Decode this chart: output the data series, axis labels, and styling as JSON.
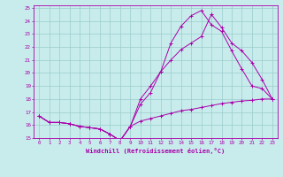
{
  "xlabel": "Windchill (Refroidissement éolien,°C)",
  "bg_color": "#c8ecec",
  "line_color": "#aa00aa",
  "grid_color": "#99cccc",
  "xlim": [
    -0.5,
    23.5
  ],
  "ylim": [
    15,
    25.2
  ],
  "xticks": [
    0,
    1,
    2,
    3,
    4,
    5,
    6,
    7,
    8,
    9,
    10,
    11,
    12,
    13,
    14,
    15,
    16,
    17,
    18,
    19,
    20,
    21,
    22,
    23
  ],
  "yticks": [
    15,
    16,
    17,
    18,
    19,
    20,
    21,
    22,
    23,
    24,
    25
  ],
  "series": [
    [
      16.7,
      16.2,
      16.2,
      16.1,
      15.9,
      15.8,
      15.7,
      15.3,
      14.8,
      15.9,
      17.6,
      18.5,
      20.1,
      22.3,
      23.6,
      24.4,
      24.8,
      23.7,
      23.2,
      21.7,
      20.3,
      19.0,
      18.8,
      18.0
    ],
    [
      16.7,
      16.2,
      16.2,
      16.1,
      15.9,
      15.8,
      15.7,
      15.3,
      14.8,
      15.9,
      18.0,
      19.0,
      20.1,
      21.0,
      21.8,
      22.3,
      22.8,
      24.5,
      23.5,
      22.3,
      21.7,
      20.8,
      19.5,
      18.0
    ],
    [
      16.7,
      16.2,
      16.2,
      16.1,
      15.9,
      15.8,
      15.7,
      15.3,
      14.8,
      15.9,
      16.3,
      16.5,
      16.7,
      16.9,
      17.1,
      17.2,
      17.35,
      17.5,
      17.65,
      17.75,
      17.85,
      17.9,
      18.0,
      18.0
    ]
  ]
}
